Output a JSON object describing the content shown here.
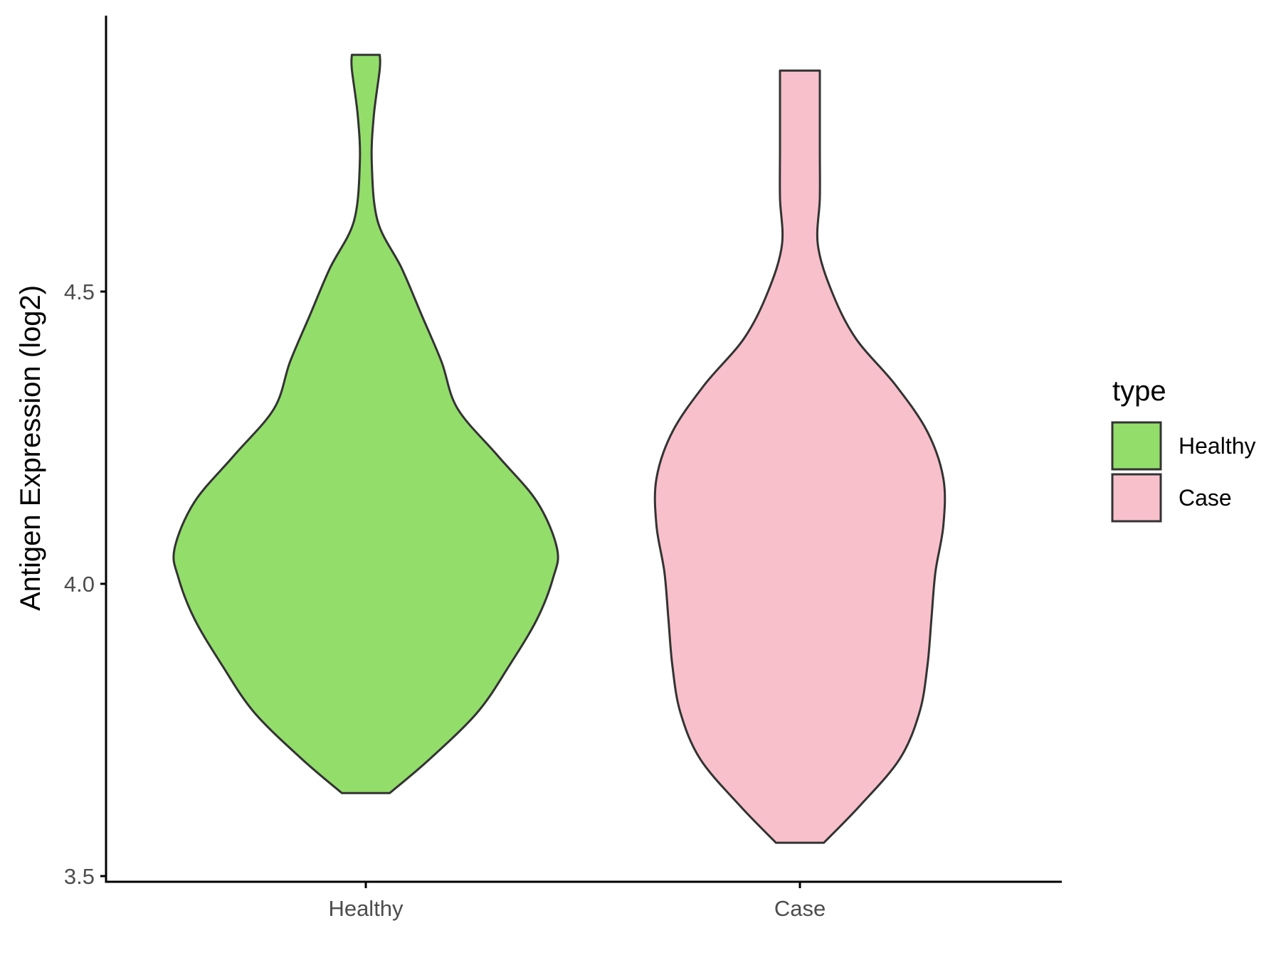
{
  "chart_data": {
    "type": "violin",
    "title": "",
    "xlabel": "",
    "ylabel": "Antigen Expression (log2)",
    "ylim": [
      3.49,
      4.98
    ],
    "yticks": [
      "3.5",
      "4.0",
      "4.5"
    ],
    "categories": [
      "Healthy",
      "Case"
    ],
    "grid": false,
    "legend": {
      "title": "type",
      "position": "right",
      "entries": [
        {
          "label": "Healthy",
          "color": "#93DD6B"
        },
        {
          "label": "Case",
          "color": "#F8C0CB"
        }
      ]
    },
    "series": [
      {
        "category": "Healthy",
        "color": "#93DD6B",
        "min": 3.642,
        "max": 4.905,
        "density_profile": [
          {
            "y": 3.642,
            "halfwidth": 0.06
          },
          {
            "y": 3.7,
            "halfwidth": 0.16
          },
          {
            "y": 3.78,
            "halfwidth": 0.28
          },
          {
            "y": 3.86,
            "halfwidth": 0.36
          },
          {
            "y": 3.94,
            "halfwidth": 0.43
          },
          {
            "y": 4.01,
            "halfwidth": 0.47
          },
          {
            "y": 4.06,
            "halfwidth": 0.48
          },
          {
            "y": 4.14,
            "halfwidth": 0.43
          },
          {
            "y": 4.22,
            "halfwidth": 0.33
          },
          {
            "y": 4.3,
            "halfwidth": 0.23
          },
          {
            "y": 4.38,
            "halfwidth": 0.19
          },
          {
            "y": 4.46,
            "halfwidth": 0.14
          },
          {
            "y": 4.54,
            "halfwidth": 0.09
          },
          {
            "y": 4.62,
            "halfwidth": 0.03
          },
          {
            "y": 4.72,
            "halfwidth": 0.015
          },
          {
            "y": 4.8,
            "halfwidth": 0.02
          },
          {
            "y": 4.88,
            "halfwidth": 0.035
          },
          {
            "y": 4.905,
            "halfwidth": 0.035
          }
        ]
      },
      {
        "category": "Case",
        "color": "#F8C0CB",
        "min": 3.557,
        "max": 4.878,
        "density_profile": [
          {
            "y": 3.557,
            "halfwidth": 0.06
          },
          {
            "y": 3.62,
            "halfwidth": 0.15
          },
          {
            "y": 3.7,
            "halfwidth": 0.25
          },
          {
            "y": 3.78,
            "halfwidth": 0.3
          },
          {
            "y": 3.86,
            "halfwidth": 0.32
          },
          {
            "y": 3.94,
            "halfwidth": 0.33
          },
          {
            "y": 4.02,
            "halfwidth": 0.34
          },
          {
            "y": 4.1,
            "halfwidth": 0.36
          },
          {
            "y": 4.18,
            "halfwidth": 0.36
          },
          {
            "y": 4.26,
            "halfwidth": 0.32
          },
          {
            "y": 4.34,
            "halfwidth": 0.24
          },
          {
            "y": 4.42,
            "halfwidth": 0.14
          },
          {
            "y": 4.5,
            "halfwidth": 0.08
          },
          {
            "y": 4.58,
            "halfwidth": 0.045
          },
          {
            "y": 4.66,
            "halfwidth": 0.05
          },
          {
            "y": 4.74,
            "halfwidth": 0.05
          },
          {
            "y": 4.82,
            "halfwidth": 0.05
          },
          {
            "y": 4.878,
            "halfwidth": 0.05
          }
        ]
      }
    ]
  },
  "colors": {
    "outline": "#333333",
    "axis": "#000000",
    "tick_text": "#4d4d4d"
  }
}
